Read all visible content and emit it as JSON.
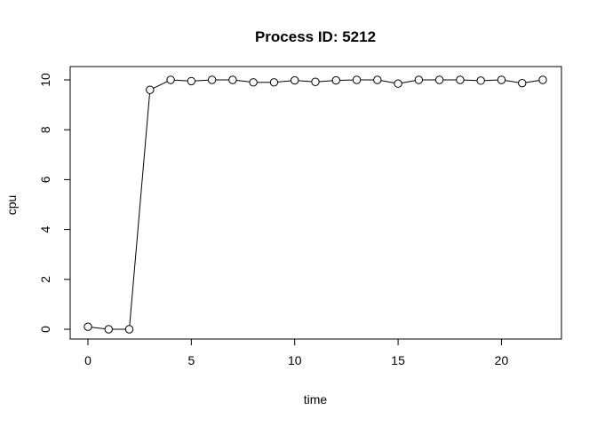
{
  "chart_data": {
    "type": "line",
    "title": "Process ID: 5212",
    "xlabel": "time",
    "ylabel": "cpu",
    "xlim": [
      0,
      22
    ],
    "ylim": [
      0,
      10
    ],
    "xticks": [
      0,
      5,
      10,
      15,
      20
    ],
    "yticks": [
      0,
      2,
      4,
      6,
      8,
      10
    ],
    "grid": false,
    "marker": "open-circle",
    "line_color": "#000000",
    "series": [
      {
        "x": [
          0,
          1,
          2,
          3,
          4,
          5,
          6,
          7,
          8,
          9,
          10,
          11,
          12,
          13,
          14,
          15,
          16,
          17,
          18,
          19,
          20,
          21,
          22
        ],
        "values": [
          0.1,
          0.0,
          0.0,
          9.6,
          10.0,
          9.95,
          10.0,
          10.0,
          9.9,
          9.9,
          9.98,
          9.92,
          9.98,
          10.0,
          10.0,
          9.85,
          10.0,
          10.0,
          10.0,
          9.97,
          10.0,
          9.87,
          10.0
        ]
      }
    ]
  }
}
